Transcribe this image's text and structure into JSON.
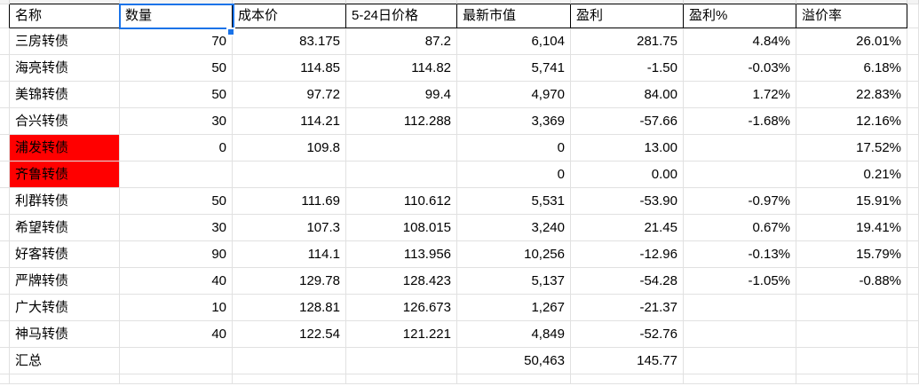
{
  "sheet": {
    "headers": [
      "名称",
      "数量",
      "成本价",
      "5-24日价格",
      "最新市值",
      "盈利",
      "盈利%",
      "溢价率"
    ],
    "selection": {
      "selected_header_cell": "数量"
    },
    "colors": {
      "selection_blue": "#1a73e8",
      "highlight_red": "#ff0000",
      "gridline": "#e1e1e1",
      "header_border": "#000000"
    },
    "rows": [
      {
        "name": "三房转债",
        "qty": "70",
        "cost": "83.175",
        "price": "87.2",
        "value": "6,104",
        "profit": "281.75",
        "profit_pct": "4.84%",
        "premium": "26.01%",
        "highlight": false
      },
      {
        "name": "海亮转债",
        "qty": "50",
        "cost": "114.85",
        "price": "114.82",
        "value": "5,741",
        "profit": "-1.50",
        "profit_pct": "-0.03%",
        "premium": "6.18%",
        "highlight": false
      },
      {
        "name": "美锦转债",
        "qty": "50",
        "cost": "97.72",
        "price": "99.4",
        "value": "4,970",
        "profit": "84.00",
        "profit_pct": "1.72%",
        "premium": "22.83%",
        "highlight": false
      },
      {
        "name": "合兴转债",
        "qty": "30",
        "cost": "114.21",
        "price": "112.288",
        "value": "3,369",
        "profit": "-57.66",
        "profit_pct": "-1.68%",
        "premium": "12.16%",
        "highlight": false
      },
      {
        "name": "浦发转债",
        "qty": "0",
        "cost": "109.8",
        "price": "",
        "value": "0",
        "profit": "13.00",
        "profit_pct": "",
        "premium": "17.52%",
        "highlight": true
      },
      {
        "name": "齐鲁转债",
        "qty": "",
        "cost": "",
        "price": "",
        "value": "0",
        "profit": "0.00",
        "profit_pct": "",
        "premium": "0.21%",
        "highlight": true
      },
      {
        "name": "利群转债",
        "qty": "50",
        "cost": "111.69",
        "price": "110.612",
        "value": "5,531",
        "profit": "-53.90",
        "profit_pct": "-0.97%",
        "premium": "15.91%",
        "highlight": false
      },
      {
        "name": "希望转债",
        "qty": "30",
        "cost": "107.3",
        "price": "108.015",
        "value": "3,240",
        "profit": "21.45",
        "profit_pct": "0.67%",
        "premium": "19.41%",
        "highlight": false
      },
      {
        "name": "好客转债",
        "qty": "90",
        "cost": "114.1",
        "price": "113.956",
        "value": "10,256",
        "profit": "-12.96",
        "profit_pct": "-0.13%",
        "premium": "15.79%",
        "highlight": false
      },
      {
        "name": "严牌转债",
        "qty": "40",
        "cost": "129.78",
        "price": "128.423",
        "value": "5,137",
        "profit": "-54.28",
        "profit_pct": "-1.05%",
        "premium": "-0.88%",
        "highlight": false
      },
      {
        "name": "广大转债",
        "qty": "10",
        "cost": "128.81",
        "price": "126.673",
        "value": "1,267",
        "profit": "-21.37",
        "profit_pct": "",
        "premium": "",
        "highlight": false
      },
      {
        "name": "神马转债",
        "qty": "40",
        "cost": "122.54",
        "price": "121.221",
        "value": "4,849",
        "profit": "-52.76",
        "profit_pct": "",
        "premium": "",
        "highlight": false
      },
      {
        "name": "汇总",
        "qty": "",
        "cost": "",
        "price": "",
        "value": "50,463",
        "profit": "145.77",
        "profit_pct": "",
        "premium": "",
        "highlight": false
      }
    ]
  }
}
